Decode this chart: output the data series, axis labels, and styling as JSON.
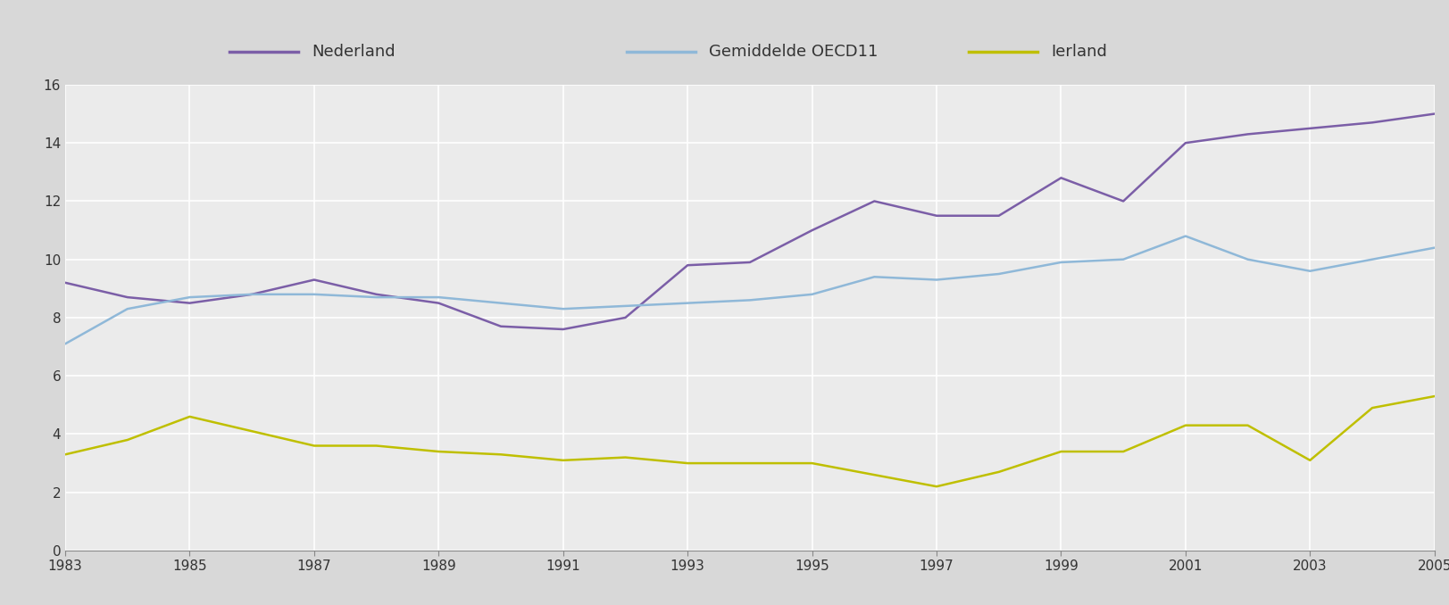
{
  "years": [
    1983,
    1984,
    1985,
    1986,
    1987,
    1988,
    1989,
    1990,
    1991,
    1992,
    1993,
    1994,
    1995,
    1996,
    1997,
    1998,
    1999,
    2000,
    2001,
    2002,
    2003,
    2004,
    2005
  ],
  "nederland": [
    9.2,
    8.7,
    8.5,
    8.8,
    9.3,
    8.8,
    8.5,
    7.7,
    7.6,
    8.0,
    9.8,
    9.9,
    11.0,
    12.0,
    11.5,
    11.5,
    12.8,
    12.0,
    14.0,
    14.3,
    14.5,
    14.7,
    15.0
  ],
  "gemiddelde_oecd11": [
    7.1,
    8.3,
    8.7,
    8.8,
    8.8,
    8.7,
    8.7,
    8.5,
    8.3,
    8.4,
    8.5,
    8.6,
    8.8,
    9.4,
    9.3,
    9.5,
    9.9,
    10.0,
    10.8,
    10.0,
    9.6,
    10.0,
    10.4
  ],
  "ierland": [
    3.3,
    3.8,
    4.6,
    4.1,
    3.6,
    3.6,
    3.4,
    3.3,
    3.1,
    3.2,
    3.0,
    3.0,
    3.0,
    2.6,
    2.2,
    2.7,
    3.4,
    3.4,
    4.3,
    4.3,
    3.1,
    4.9,
    5.3
  ],
  "nederland_color": "#7B5EA7",
  "oecd_color": "#8FB8D8",
  "ierland_color": "#BFBF00",
  "legend_nederland": "Nederland",
  "legend_oecd": "Gemiddelde OECD11",
  "legend_ierland": "Ierland",
  "ylim": [
    0,
    16
  ],
  "yticks": [
    0,
    2,
    4,
    6,
    8,
    10,
    12,
    14,
    16
  ],
  "xtick_years": [
    1983,
    1985,
    1987,
    1989,
    1991,
    1993,
    1995,
    1997,
    1999,
    2001,
    2003,
    2005
  ],
  "fig_bg_color": "#D8D8D8",
  "legend_bg_color": "#DCDCDC",
  "plot_bg_color": "#EBEBEB",
  "line_width": 1.8,
  "legend_fontsize": 13,
  "tick_fontsize": 11
}
